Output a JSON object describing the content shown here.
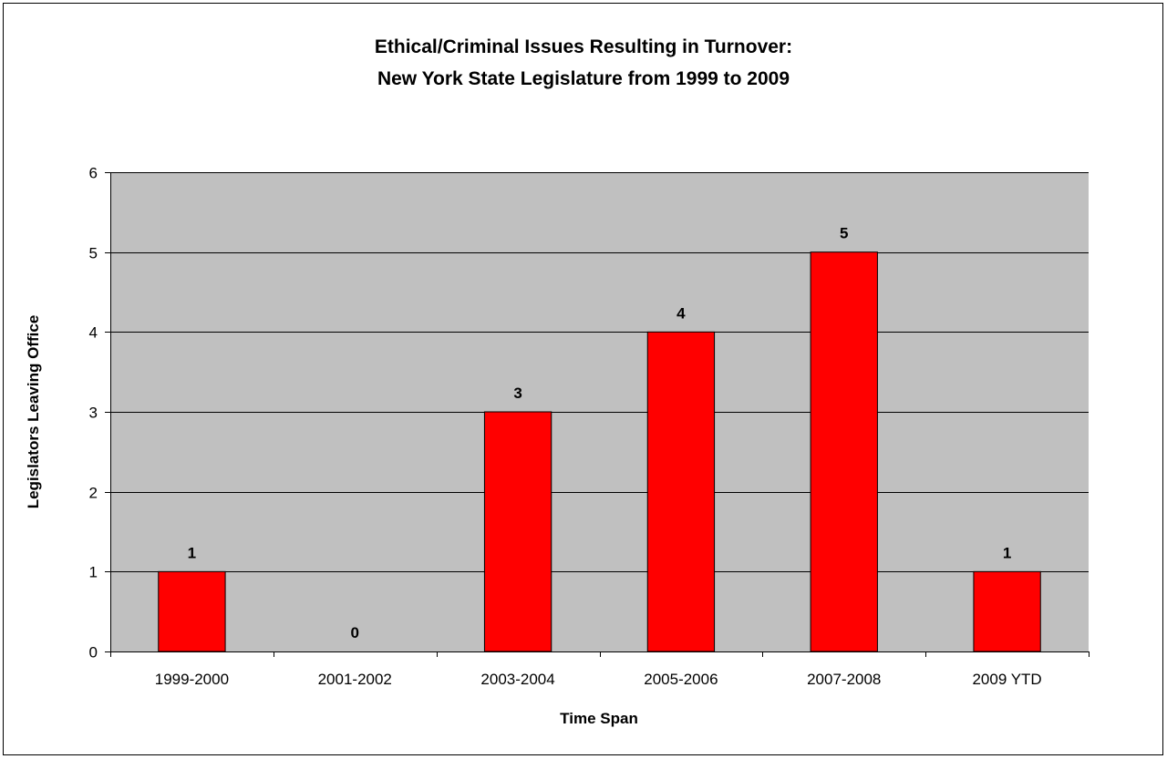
{
  "chart_data": {
    "type": "bar",
    "title": "Ethical/Criminal Issues Resulting in Turnover:",
    "subtitle": "New York State Legislature from 1999 to 2009",
    "xlabel": "Time Span",
    "ylabel": "Legislators Leaving Office",
    "categories": [
      "1999-2000",
      "2001-2002",
      "2003-2004",
      "2005-2006",
      "2007-2008",
      "2009 YTD"
    ],
    "values": [
      1,
      0,
      3,
      4,
      5,
      1
    ],
    "ylim": [
      0,
      6
    ],
    "yticks": [
      0,
      1,
      2,
      3,
      4,
      5,
      6
    ],
    "grid": true,
    "legend": "none",
    "data_labels": true,
    "colors": {
      "bar": "#ff0000",
      "bar_border": "#000000",
      "plot_background": "#c0c0c0",
      "gridline": "#000000"
    }
  }
}
